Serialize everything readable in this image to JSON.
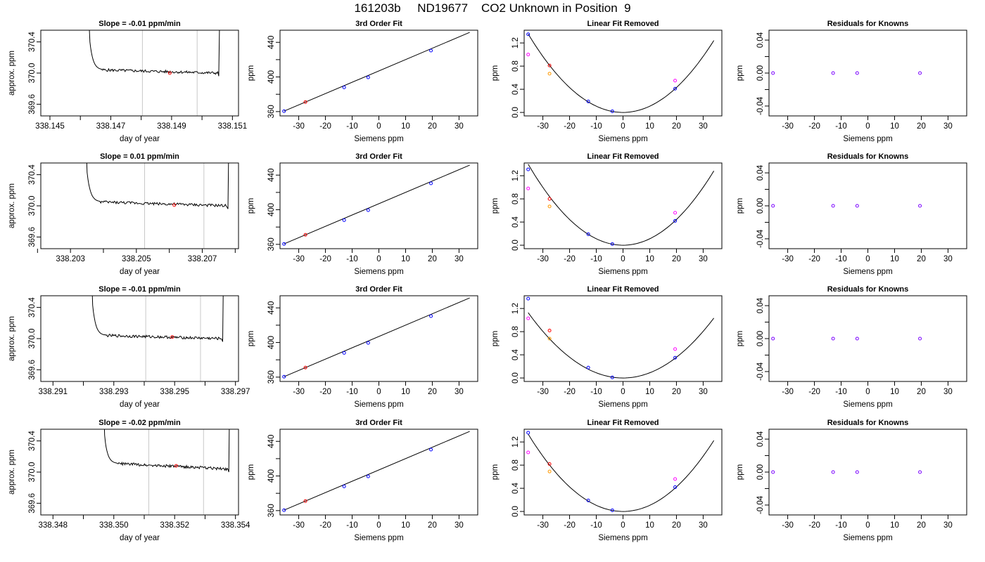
{
  "page": {
    "title": "161203b     ND19677    CO2 Unknown in Position  9"
  },
  "chart_data": [
    {
      "type": "line",
      "title": "Slope =  -0.01  ppm/min",
      "xlabel": "day of year",
      "ylabel": "approx. ppm",
      "xlim": [
        338.1447,
        338.1512
      ],
      "ylim": [
        369.45,
        370.55
      ],
      "xticks": [
        "338.145",
        "338.147",
        "338.149",
        "338.151"
      ],
      "xtick_vals": [
        338.145,
        338.147,
        338.149,
        338.151
      ],
      "xminor": [
        338.146,
        338.148,
        338.15
      ],
      "yticks": [
        "369.6",
        "370.0",
        "370.4"
      ],
      "ytick_vals": [
        369.6,
        370.0,
        370.4
      ],
      "trace": {
        "start": 338.14616,
        "end": 338.15052,
        "rise_to": 338.1463,
        "decay_end": 338.14672,
        "level": 370.04,
        "end_level": 370.0,
        "fall_to": 338.15065
      },
      "vlines": [
        338.14804,
        338.14984
      ],
      "marker": {
        "x": 338.14894,
        "y": 370.0
      }
    },
    {
      "type": "scatter",
      "title": "3rd Order Fit",
      "xlabel": "Siemens ppm",
      "ylabel": "ppm",
      "xlim": [
        -37,
        37
      ],
      "ylim": [
        355,
        454
      ],
      "xticks": [
        "-30",
        "-20",
        "-10",
        "0",
        "10",
        "20",
        "30"
      ],
      "xtick_vals": [
        -30,
        -20,
        -10,
        0,
        10,
        20,
        30
      ],
      "yticks": [
        "360",
        "400",
        "440"
      ],
      "ytick_vals": [
        360,
        400,
        440
      ],
      "yminor": [
        380,
        420
      ],
      "line": {
        "x": [
          -35.5,
          34
        ],
        "y": [
          360.5,
          451.5
        ]
      },
      "series": [
        {
          "color": "#0000ff",
          "x": [
            -35.5,
            -13,
            -4,
            19.5
          ],
          "y": [
            360.5,
            388,
            399.5,
            430.5
          ]
        },
        {
          "color": "#ff0000",
          "x": [
            -27.5
          ],
          "y": [
            371
          ]
        }
      ]
    },
    {
      "type": "scatter",
      "title": "Linear Fit Removed",
      "xlabel": "Siemens ppm",
      "ylabel": "ppm",
      "xlim": [
        -37,
        37
      ],
      "ylim": [
        -0.06,
        1.42
      ],
      "xticks": [
        "-30",
        "-20",
        "-10",
        "0",
        "10",
        "20",
        "30"
      ],
      "xtick_vals": [
        -30,
        -20,
        -10,
        0,
        10,
        20,
        30
      ],
      "yticks": [
        "0.0",
        "0.4",
        "0.8",
        "1.2"
      ],
      "ytick_vals": [
        0,
        0.4,
        0.8,
        1.2
      ],
      "curve": {
        "x0": -35.5,
        "x1": 34,
        "a": 0.001075,
        "b": 0.0,
        "c": 0.0
      },
      "series": [
        {
          "color": "#0000ff",
          "x": [
            -35.5,
            -13,
            -4,
            19.5
          ],
          "y": [
            1.35,
            0.19,
            0.02,
            0.41
          ]
        },
        {
          "color": "#ff0000",
          "x": [
            -27.5
          ],
          "y": [
            0.81
          ]
        },
        {
          "color": "#ff9900",
          "x": [
            -27.5
          ],
          "y": [
            0.67
          ]
        },
        {
          "color": "#ff00ff",
          "x": [
            -35.5,
            19.5
          ],
          "y": [
            1.0,
            0.55
          ]
        }
      ]
    },
    {
      "type": "scatter",
      "title": "Residuals for Knowns",
      "xlabel": "Siemens ppm",
      "ylabel": "ppm",
      "xlim": [
        -37,
        37
      ],
      "ylim": [
        -0.052,
        0.052
      ],
      "xticks": [
        "-30",
        "-20",
        "-10",
        "0",
        "10",
        "20",
        "30"
      ],
      "xtick_vals": [
        -30,
        -20,
        -10,
        0,
        10,
        20,
        30
      ],
      "yticks": [
        "-0.04",
        "0.00",
        "0.04"
      ],
      "ytick_vals": [
        -0.04,
        0,
        0.04
      ],
      "yminor": [
        -0.02,
        0.02
      ],
      "series": [
        {
          "color": "#7a00ff",
          "x": [
            -35.5,
            -13,
            -4,
            19.5
          ],
          "y": [
            0,
            0,
            0,
            0
          ]
        }
      ]
    },
    {
      "type": "line",
      "title": "Slope =  0.01  ppm/min",
      "xlabel": "day of year",
      "ylabel": "approx. ppm",
      "xlim": [
        338.2021,
        338.2081
      ],
      "ylim": [
        369.45,
        370.55
      ],
      "xticks": [
        "338.203",
        "338.205",
        "338.207"
      ],
      "xtick_vals": [
        338.203,
        338.205,
        338.207
      ],
      "xminor": [
        338.202,
        338.204,
        338.206,
        338.208
      ],
      "yticks": [
        "369.6",
        "370.0",
        "370.4"
      ],
      "ytick_vals": [
        369.6,
        370.0,
        370.4
      ],
      "trace": {
        "start": 338.20335,
        "end": 338.20775,
        "rise_to": 338.2035,
        "decay_end": 338.2039,
        "level": 370.05,
        "end_level": 370.0,
        "fall_to": 338.20785
      },
      "vlines": [
        338.20525,
        338.20705
      ],
      "marker": {
        "x": 338.20615,
        "y": 370.01
      }
    },
    {
      "type": "scatter",
      "title": "3rd Order Fit",
      "xlabel": "Siemens ppm",
      "ylabel": "ppm",
      "xlim": [
        -37,
        37
      ],
      "ylim": [
        355,
        454
      ],
      "xticks": [
        "-30",
        "-20",
        "-10",
        "0",
        "10",
        "20",
        "30"
      ],
      "xtick_vals": [
        -30,
        -20,
        -10,
        0,
        10,
        20,
        30
      ],
      "yticks": [
        "360",
        "400",
        "440"
      ],
      "ytick_vals": [
        360,
        400,
        440
      ],
      "yminor": [
        380,
        420
      ],
      "line": {
        "x": [
          -35.5,
          34
        ],
        "y": [
          360.5,
          451.5
        ]
      },
      "series": [
        {
          "color": "#0000ff",
          "x": [
            -35.5,
            -13,
            -4,
            19.5
          ],
          "y": [
            360.5,
            388,
            399.5,
            430.5
          ]
        },
        {
          "color": "#ff0000",
          "x": [
            -27.5
          ],
          "y": [
            371
          ]
        }
      ]
    },
    {
      "type": "scatter",
      "title": "Linear Fit Removed",
      "xlabel": "Siemens ppm",
      "ylabel": "ppm",
      "xlim": [
        -37,
        37
      ],
      "ylim": [
        -0.06,
        1.42
      ],
      "xticks": [
        "-30",
        "-20",
        "-10",
        "0",
        "10",
        "20",
        "30"
      ],
      "xtick_vals": [
        -30,
        -20,
        -10,
        0,
        10,
        20,
        30
      ],
      "yticks": [
        "0.0",
        "0.4",
        "0.8",
        "1.2"
      ],
      "ytick_vals": [
        0,
        0.4,
        0.8,
        1.2
      ],
      "curve": {
        "x0": -35.5,
        "x1": 34,
        "a": 0.00111,
        "b": 0.0,
        "c": 0.0
      },
      "series": [
        {
          "color": "#0000ff",
          "x": [
            -35.5,
            -13,
            -4,
            19.5
          ],
          "y": [
            1.31,
            0.19,
            0.02,
            0.42
          ]
        },
        {
          "color": "#ff0000",
          "x": [
            -27.5
          ],
          "y": [
            0.8
          ]
        },
        {
          "color": "#ff9900",
          "x": [
            -27.5
          ],
          "y": [
            0.67
          ]
        },
        {
          "color": "#ff00ff",
          "x": [
            -35.5,
            19.5
          ],
          "y": [
            0.98,
            0.56
          ]
        }
      ]
    },
    {
      "type": "scatter",
      "title": "Residuals for Knowns",
      "xlabel": "Siemens ppm",
      "ylabel": "ppm",
      "xlim": [
        -37,
        37
      ],
      "ylim": [
        -0.052,
        0.052
      ],
      "xticks": [
        "-30",
        "-20",
        "-10",
        "0",
        "10",
        "20",
        "30"
      ],
      "xtick_vals": [
        -30,
        -20,
        -10,
        0,
        10,
        20,
        30
      ],
      "yticks": [
        "-0.04",
        "0.00",
        "0.04"
      ],
      "ytick_vals": [
        -0.04,
        0,
        0.04
      ],
      "yminor": [
        -0.02,
        0.02
      ],
      "series": [
        {
          "color": "#7a00ff",
          "x": [
            -35.5,
            -13,
            -4,
            19.5
          ],
          "y": [
            0,
            0,
            0,
            0
          ]
        }
      ]
    },
    {
      "type": "line",
      "title": "Slope =  -0.01  ppm/min",
      "xlabel": "day of year",
      "ylabel": "approx. ppm",
      "xlim": [
        338.2906,
        338.2971
      ],
      "ylim": [
        369.45,
        370.55
      ],
      "xticks": [
        "338.291",
        "338.293",
        "338.295",
        "338.297"
      ],
      "xtick_vals": [
        338.291,
        338.293,
        338.295,
        338.297
      ],
      "xminor": [
        338.292,
        338.294,
        338.296
      ],
      "yticks": [
        "369.6",
        "370.0",
        "370.4"
      ],
      "ytick_vals": [
        369.6,
        370.0,
        370.4
      ],
      "trace": {
        "start": 338.29215,
        "end": 338.29655,
        "rise_to": 338.2923,
        "decay_end": 338.2927,
        "level": 370.04,
        "end_level": 370.0,
        "fall_to": 338.29665
      },
      "vlines": [
        338.29405,
        338.29585
      ],
      "marker": {
        "x": 338.29492,
        "y": 370.02
      }
    },
    {
      "type": "scatter",
      "title": "3rd Order Fit",
      "xlabel": "Siemens ppm",
      "ylabel": "ppm",
      "xlim": [
        -37,
        37
      ],
      "ylim": [
        355,
        454
      ],
      "xticks": [
        "-30",
        "-20",
        "-10",
        "0",
        "10",
        "20",
        "30"
      ],
      "xtick_vals": [
        -30,
        -20,
        -10,
        0,
        10,
        20,
        30
      ],
      "yticks": [
        "360",
        "400",
        "440"
      ],
      "ytick_vals": [
        360,
        400,
        440
      ],
      "yminor": [
        380,
        420
      ],
      "line": {
        "x": [
          -35.5,
          34
        ],
        "y": [
          360.5,
          451.5
        ]
      },
      "series": [
        {
          "color": "#0000ff",
          "x": [
            -35.5,
            -13,
            -4,
            19.5
          ],
          "y": [
            360.5,
            388,
            399.5,
            430.5
          ]
        },
        {
          "color": "#ff0000",
          "x": [
            -27.5
          ],
          "y": [
            371
          ]
        }
      ]
    },
    {
      "type": "scatter",
      "title": "Linear Fit Removed",
      "xlabel": "Siemens ppm",
      "ylabel": "ppm",
      "xlim": [
        -37,
        37
      ],
      "ylim": [
        -0.06,
        1.42
      ],
      "xticks": [
        "-30",
        "-20",
        "-10",
        "0",
        "10",
        "20",
        "30"
      ],
      "xtick_vals": [
        -30,
        -20,
        -10,
        0,
        10,
        20,
        30
      ],
      "yticks": [
        "0.0",
        "0.4",
        "0.8",
        "1.2"
      ],
      "ytick_vals": [
        0,
        0.4,
        0.8,
        1.2
      ],
      "curve": {
        "x0": -35.5,
        "x1": 34,
        "a": 0.000895,
        "b": 0.0,
        "c": 0.0
      },
      "series": [
        {
          "color": "#0000ff",
          "x": [
            -35.5,
            -13,
            -4,
            19.5
          ],
          "y": [
            1.37,
            0.18,
            0.01,
            0.35
          ]
        },
        {
          "color": "#ff0000",
          "x": [
            -27.5
          ],
          "y": [
            0.82
          ]
        },
        {
          "color": "#ff9900",
          "x": [
            -27.5
          ],
          "y": [
            0.68
          ]
        },
        {
          "color": "#ff00ff",
          "x": [
            -35.5,
            19.5
          ],
          "y": [
            1.03,
            0.5
          ]
        }
      ]
    },
    {
      "type": "scatter",
      "title": "Residuals for Knowns",
      "xlabel": "Siemens ppm",
      "ylabel": "ppm",
      "xlim": [
        -37,
        37
      ],
      "ylim": [
        -0.052,
        0.052
      ],
      "xticks": [
        "-30",
        "-20",
        "-10",
        "0",
        "10",
        "20",
        "30"
      ],
      "xtick_vals": [
        -30,
        -20,
        -10,
        0,
        10,
        20,
        30
      ],
      "yticks": [
        "-0.04",
        "0.00",
        "0.04"
      ],
      "ytick_vals": [
        -0.04,
        0,
        0.04
      ],
      "yminor": [
        -0.02,
        0.02
      ],
      "series": [
        {
          "color": "#7a00ff",
          "x": [
            -35.5,
            -13,
            -4,
            19.5
          ],
          "y": [
            0,
            0,
            0,
            0
          ]
        }
      ]
    },
    {
      "type": "line",
      "title": "Slope =  -0.02  ppm/min",
      "xlabel": "day of year",
      "ylabel": "approx. ppm",
      "xlim": [
        338.3476,
        338.3541
      ],
      "ylim": [
        369.45,
        370.55
      ],
      "xticks": [
        "338.348",
        "338.350",
        "338.352",
        "338.354"
      ],
      "xtick_vals": [
        338.348,
        338.35,
        338.352,
        338.354
      ],
      "xminor": [
        338.349,
        338.351,
        338.353
      ],
      "yticks": [
        "369.6",
        "370.0",
        "370.4"
      ],
      "ytick_vals": [
        369.6,
        370.0,
        370.4
      ],
      "trace": {
        "start": 338.34955,
        "end": 338.35375,
        "rise_to": 338.3497,
        "decay_end": 338.3501,
        "level": 370.11,
        "end_level": 370.04,
        "fall_to": 338.35385
      },
      "vlines": [
        338.35115,
        338.35295
      ],
      "marker": {
        "x": 338.35205,
        "y": 370.08
      }
    },
    {
      "type": "scatter",
      "title": "3rd Order Fit",
      "xlabel": "Siemens ppm",
      "ylabel": "ppm",
      "xlim": [
        -37,
        37
      ],
      "ylim": [
        355,
        454
      ],
      "xticks": [
        "-30",
        "-20",
        "-10",
        "0",
        "10",
        "20",
        "30"
      ],
      "xtick_vals": [
        -30,
        -20,
        -10,
        0,
        10,
        20,
        30
      ],
      "yticks": [
        "360",
        "400",
        "440"
      ],
      "ytick_vals": [
        360,
        400,
        440
      ],
      "yminor": [
        380,
        420
      ],
      "line": {
        "x": [
          -35.5,
          34
        ],
        "y": [
          360.5,
          451.5
        ]
      },
      "series": [
        {
          "color": "#0000ff",
          "x": [
            -35.5,
            -13,
            -4,
            19.5
          ],
          "y": [
            360.5,
            388,
            399.5,
            430.5
          ]
        },
        {
          "color": "#ff0000",
          "x": [
            -27.5
          ],
          "y": [
            371
          ]
        }
      ]
    },
    {
      "type": "scatter",
      "title": "Linear Fit Removed",
      "xlabel": "Siemens ppm",
      "ylabel": "ppm",
      "xlim": [
        -37,
        37
      ],
      "ylim": [
        -0.06,
        1.42
      ],
      "xticks": [
        "-30",
        "-20",
        "-10",
        "0",
        "10",
        "20",
        "30"
      ],
      "xtick_vals": [
        -30,
        -20,
        -10,
        0,
        10,
        20,
        30
      ],
      "yticks": [
        "0.0",
        "0.4",
        "0.8",
        "1.2"
      ],
      "ytick_vals": [
        0,
        0.4,
        0.8,
        1.2
      ],
      "curve": {
        "x0": -35.5,
        "x1": 34,
        "a": 0.00106,
        "b": 0.0,
        "c": 0.0
      },
      "series": [
        {
          "color": "#0000ff",
          "x": [
            -35.5,
            -13,
            -4,
            19.5
          ],
          "y": [
            1.36,
            0.19,
            0.02,
            0.42
          ]
        },
        {
          "color": "#ff0000",
          "x": [
            -27.5
          ],
          "y": [
            0.82
          ]
        },
        {
          "color": "#ff9900",
          "x": [
            -27.5
          ],
          "y": [
            0.69
          ]
        },
        {
          "color": "#ff00ff",
          "x": [
            -35.5,
            19.5
          ],
          "y": [
            1.02,
            0.56
          ]
        }
      ]
    },
    {
      "type": "scatter",
      "title": "Residuals for Knowns",
      "xlabel": "Siemens ppm",
      "ylabel": "ppm",
      "xlim": [
        -37,
        37
      ],
      "ylim": [
        -0.052,
        0.052
      ],
      "xticks": [
        "-30",
        "-20",
        "-10",
        "0",
        "10",
        "20",
        "30"
      ],
      "xtick_vals": [
        -30,
        -20,
        -10,
        0,
        10,
        20,
        30
      ],
      "yticks": [
        "-0.04",
        "0.00",
        "0.04"
      ],
      "ytick_vals": [
        -0.04,
        0,
        0.04
      ],
      "yminor": [
        -0.02,
        0.02
      ],
      "series": [
        {
          "color": "#7a00ff",
          "x": [
            -35.5,
            -13,
            -4,
            19.5
          ],
          "y": [
            0,
            0,
            0,
            0
          ]
        }
      ]
    }
  ]
}
